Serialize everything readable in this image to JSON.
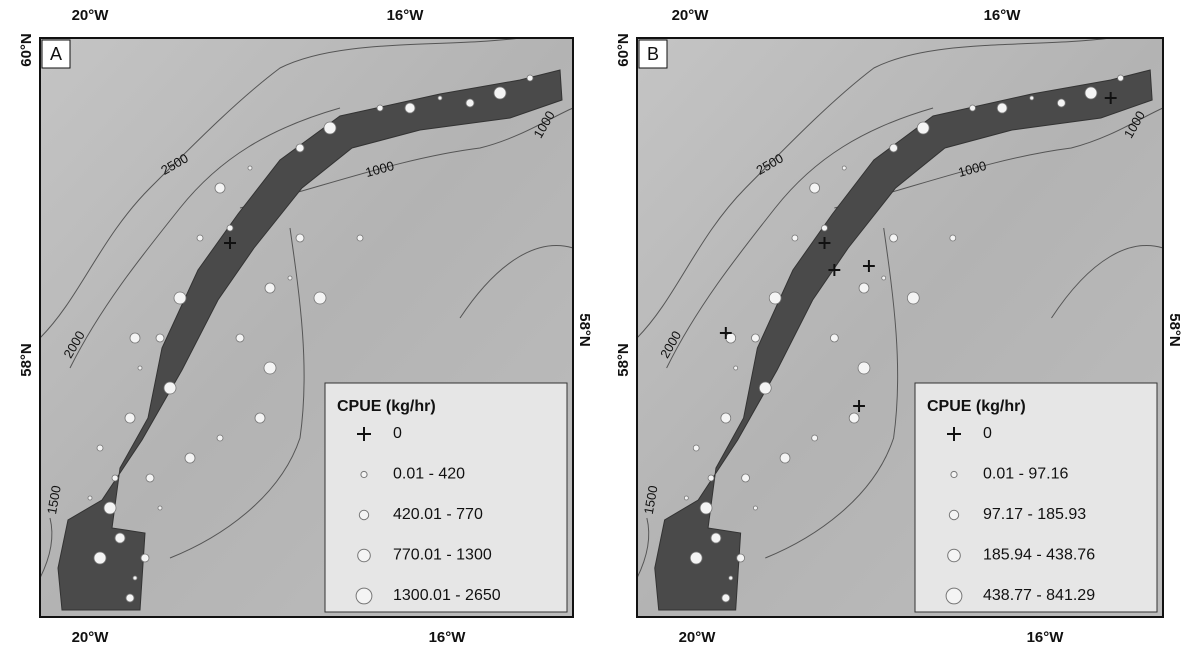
{
  "panels": [
    {
      "label": "A",
      "top_lon_labels": [
        "20°W",
        "16°W"
      ],
      "bottom_lon_labels": [
        "20°W",
        "16°W"
      ],
      "left_lat_labels": [
        "60°N",
        "58°N"
      ],
      "right_lat_label": "58°N",
      "contour_labels": [
        "2500",
        "1000",
        "1000",
        "2000",
        "1500"
      ],
      "legend": {
        "title": "CPUE (kg/hr)",
        "entries": [
          "0",
          "0.01 - 420",
          "420.01 - 770",
          "770.01 - 1300",
          "1300.01 - 2650"
        ]
      }
    },
    {
      "label": "B",
      "top_lon_labels": [
        "20°W",
        "16°W"
      ],
      "bottom_lon_labels": [
        "20°W",
        "16°W"
      ],
      "left_lat_labels": [
        "60°N",
        "58°N"
      ],
      "right_lat_label": "58°N",
      "contour_labels": [
        "2500",
        "1000",
        "1000",
        "2000",
        "1500"
      ],
      "legend": {
        "title": "CPUE (kg/hr)",
        "entries": [
          "0",
          "0.01 - 97.16",
          "97.17 - 185.93",
          "185.94 - 438.76",
          "438.77 - 841.29"
        ]
      }
    }
  ]
}
